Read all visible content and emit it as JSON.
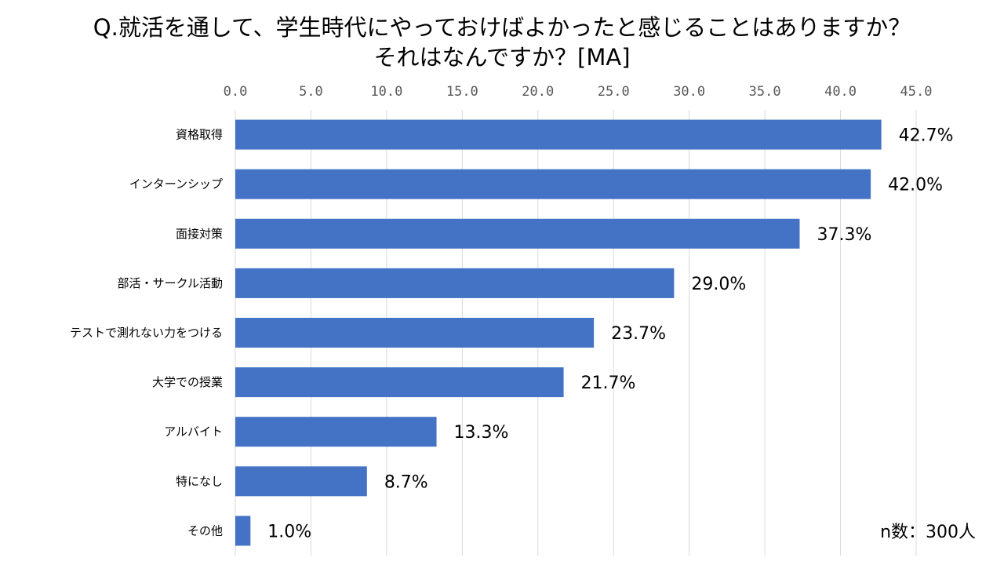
{
  "chart_data": {
    "type": "bar",
    "orientation": "horizontal",
    "title_line1": "Q.就活を通して、学生時代にやっておけばよかったと感じることはありますか？",
    "title_line2": "それはなんですか？[MA]",
    "categories": [
      "資格取得",
      "インターンシップ",
      "面接対策",
      "部活・サークル活動",
      "テストで測れない力をつける",
      "大学での授業",
      "アルバイト",
      "特になし",
      "その他"
    ],
    "values": [
      42.7,
      42.0,
      37.3,
      29.0,
      23.7,
      21.7,
      13.3,
      8.7,
      1.0
    ],
    "data_labels": [
      "42.7%",
      "42.0%",
      "37.3%",
      "29.0%",
      "23.7%",
      "21.7%",
      "13.3%",
      "8.7%",
      "1.0%"
    ],
    "xlim": [
      0,
      45
    ],
    "xticks": [
      "0.0",
      "5.0",
      "10.0",
      "15.0",
      "20.0",
      "25.0",
      "30.0",
      "35.0",
      "40.0",
      "45.0"
    ],
    "x_axis_position": "top",
    "grid": true,
    "bar_color": "#4472C4",
    "gridline_color": "#D9D9D9",
    "note": "n数：300人"
  }
}
